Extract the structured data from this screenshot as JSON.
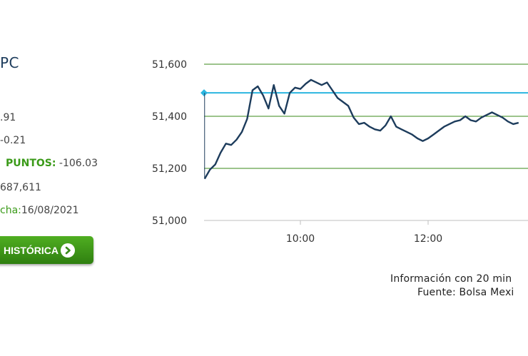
{
  "index": {
    "title": "PC",
    "stats": [
      {
        "label": "",
        "value": ".91"
      },
      {
        "label": "",
        "value": "-0.21"
      },
      {
        "label": "PUNTOS:",
        "value": " -106.03"
      },
      {
        "label": "",
        "value": "687,611"
      },
      {
        "label": "cha:",
        "value": "16/08/2021"
      }
    ]
  },
  "history_button": {
    "label": "HISTÓRICA",
    "icon": "arrow-right-circle-icon"
  },
  "colors": {
    "brand_green": "#3a9a18",
    "reference_line": "#2bb6e0",
    "price_line": "#1d3c5c",
    "grid_line": "#3a8a1a"
  },
  "chart_data": {
    "type": "line",
    "title": "",
    "xlabel": "",
    "ylabel": "",
    "y_ticks": [
      "51,000",
      "51,200",
      "51,400",
      "51,600"
    ],
    "x_ticks": [
      "10:00",
      "12:00"
    ],
    "ylim": [
      51000,
      51600
    ],
    "grid": "horizontal",
    "reference_value": 51490,
    "series": [
      {
        "x": [
          "08:30",
          "08:35",
          "08:40",
          "08:45",
          "08:50",
          "08:55",
          "09:00",
          "09:05",
          "09:10",
          "09:15",
          "09:20",
          "09:25",
          "09:30",
          "09:35",
          "09:40",
          "09:45",
          "09:50",
          "09:55",
          "10:00",
          "10:05",
          "10:10",
          "10:15",
          "10:20",
          "10:25",
          "10:30",
          "10:35",
          "10:40",
          "10:45",
          "10:50",
          "10:55",
          "11:00",
          "11:05",
          "11:10",
          "11:15",
          "11:20",
          "11:25",
          "11:30",
          "11:35",
          "11:40",
          "11:45",
          "11:50",
          "11:55",
          "12:00",
          "12:05",
          "12:10",
          "12:15",
          "12:20",
          "12:25",
          "12:30",
          "12:35",
          "12:40",
          "12:45",
          "12:50",
          "12:55",
          "13:00",
          "13:05",
          "13:10",
          "13:15",
          "13:20",
          "13:25"
        ],
        "values": [
          51160,
          51195,
          51215,
          51260,
          51295,
          51290,
          51310,
          51340,
          51390,
          51500,
          51515,
          51480,
          51430,
          51520,
          51440,
          51410,
          51490,
          51510,
          51505,
          51525,
          51540,
          51530,
          51520,
          51530,
          51500,
          51470,
          51455,
          51440,
          51395,
          51370,
          51375,
          51360,
          51350,
          51345,
          51365,
          51400,
          51360,
          51350,
          51340,
          51330,
          51315,
          51305,
          51315,
          51330,
          51345,
          51360,
          51370,
          51380,
          51385,
          51400,
          51385,
          51380,
          51395,
          51405,
          51415,
          51405,
          51395,
          51380,
          51370,
          51375
        ]
      }
    ]
  },
  "footer": {
    "delay_note": "Información con 20 min",
    "source": "Fuente: Bolsa Mexi"
  }
}
